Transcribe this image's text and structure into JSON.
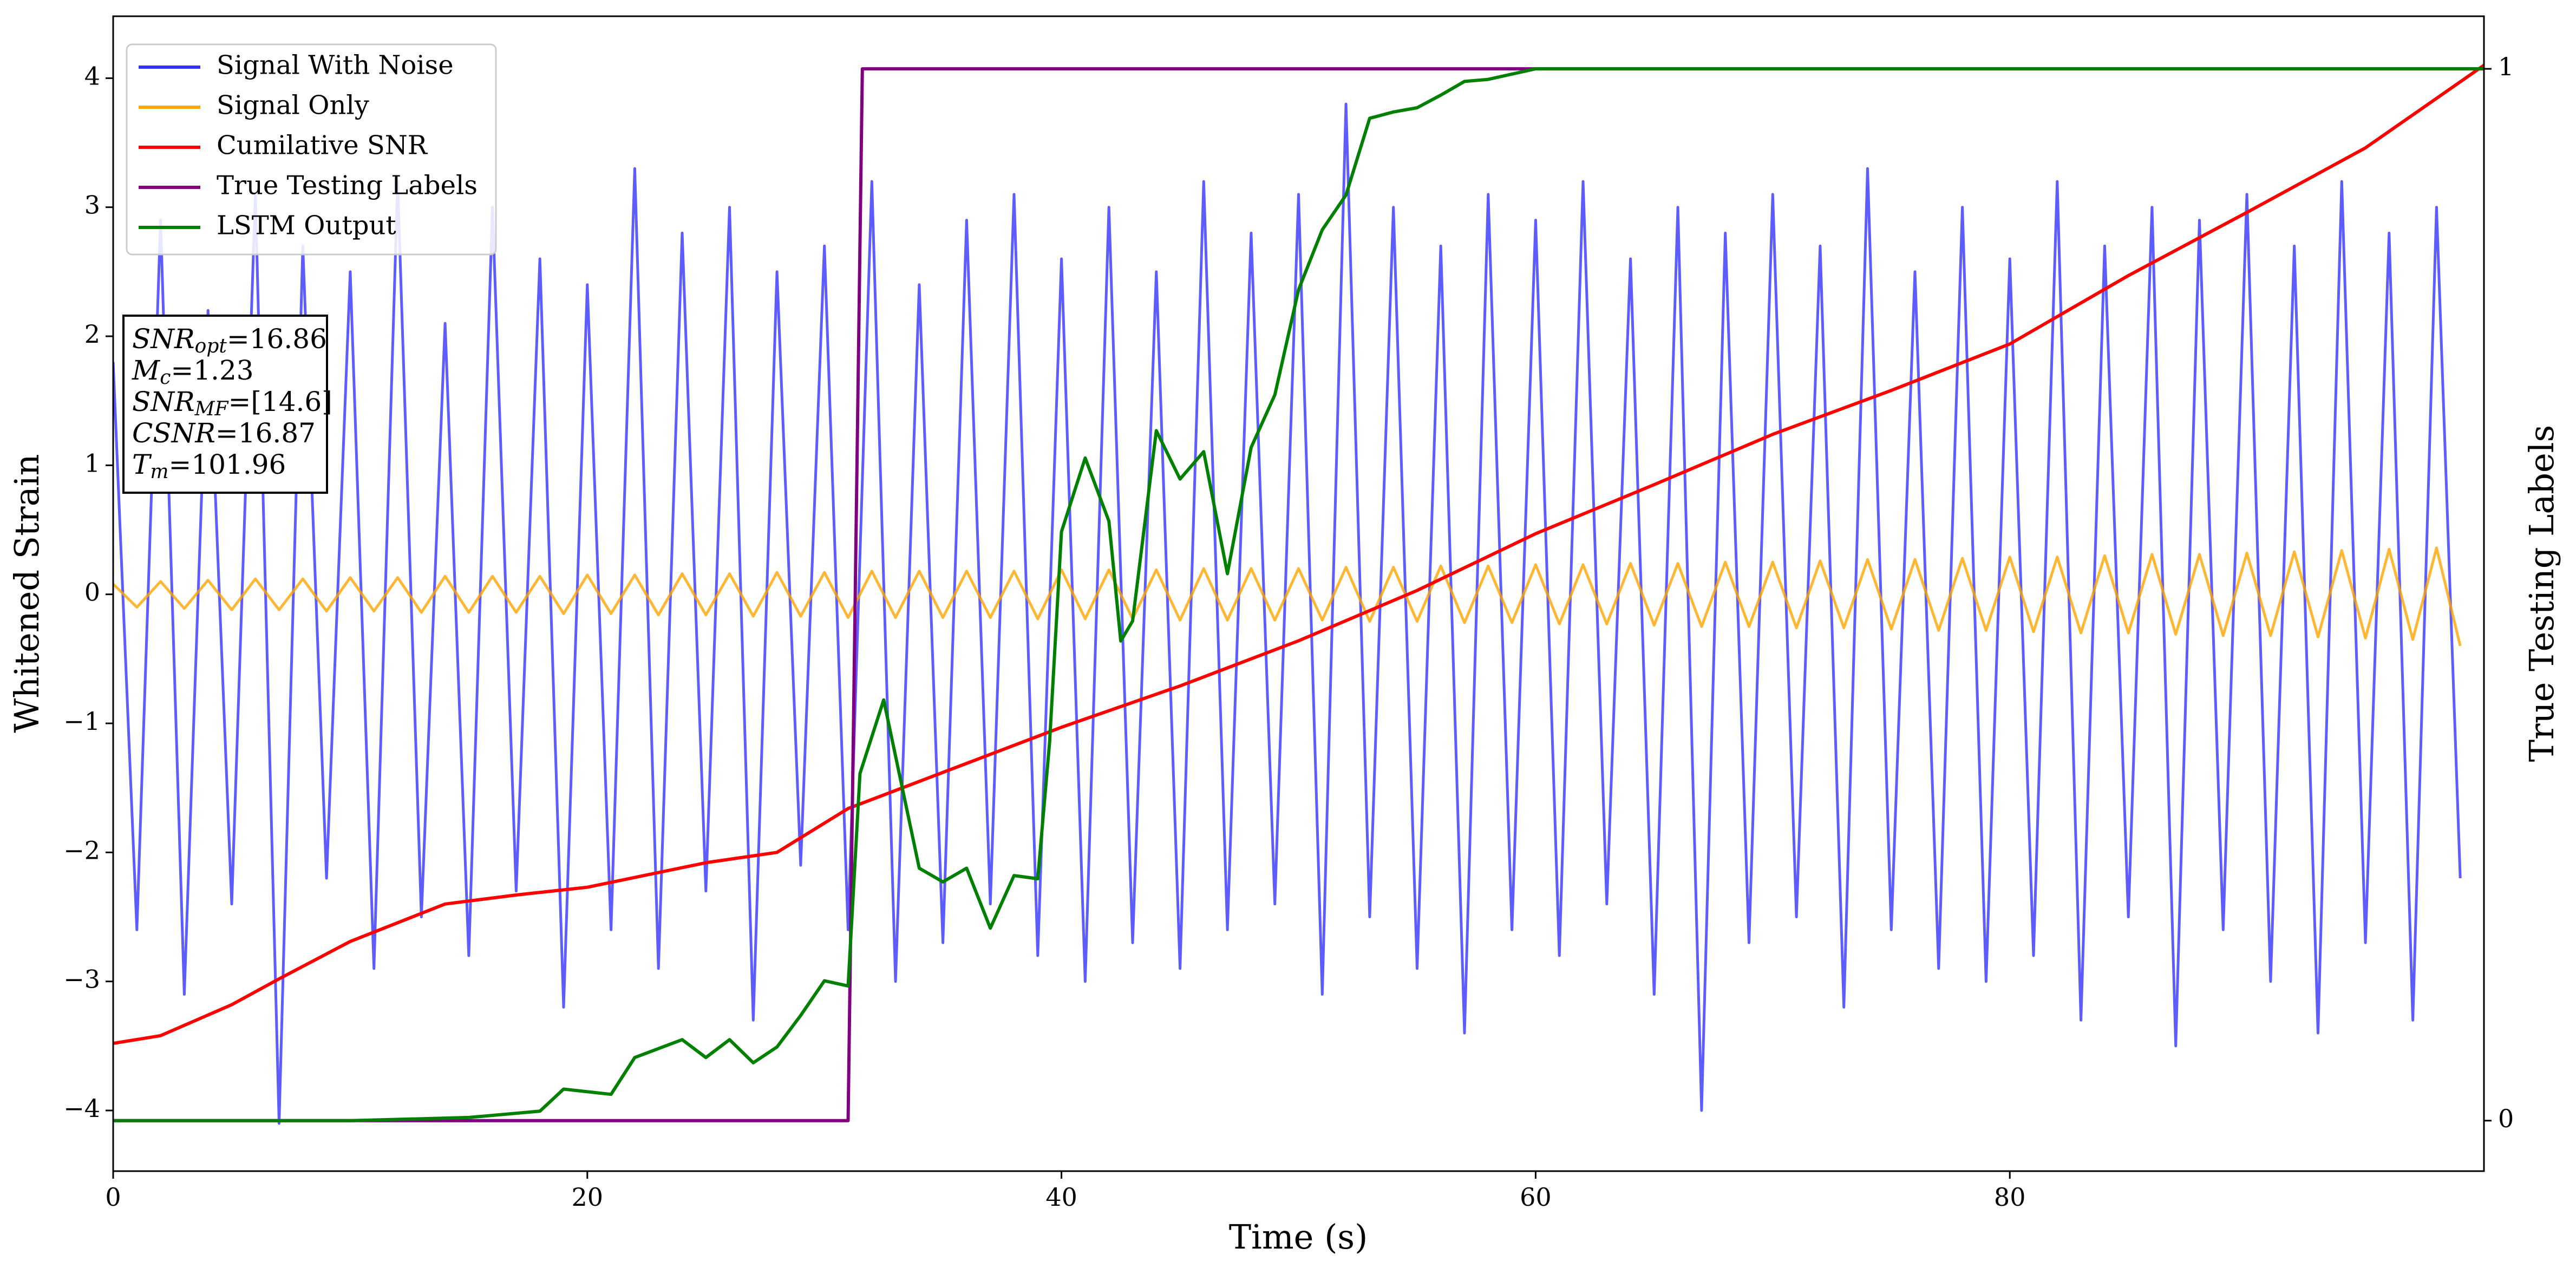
{
  "chart_data": {
    "type": "line",
    "xlabel": "Time (s)",
    "ylabel": "Whitened Strain",
    "y2label": "True Testing Labels",
    "xlim": [
      0,
      100
    ],
    "xticks": [
      0,
      20,
      40,
      60,
      80
    ],
    "ylim": [
      -4.47,
      4.48
    ],
    "yticks": [
      {
        "value": -4,
        "label": "−4"
      },
      {
        "value": -3,
        "label": "−3"
      },
      {
        "value": -2,
        "label": "−2"
      },
      {
        "value": -1,
        "label": "−1"
      },
      0,
      1,
      2,
      3,
      4
    ],
    "y2lim": [
      -0.048,
      1.05
    ],
    "y2ticks": [
      0,
      1
    ],
    "legend": "upper left",
    "annotation": [
      {
        "name": "SNR",
        "sub": "opt",
        "rest": "=16.86"
      },
      {
        "name": "M",
        "sub": "c",
        "rest": "=1.23"
      },
      {
        "name": "SNR",
        "sub": "MF",
        "rest": "=[14.6]"
      },
      {
        "name": "CSNR",
        "sub": null,
        "rest": "=16.87"
      },
      {
        "name": "T",
        "sub": "m",
        "rest": "=101.96"
      }
    ],
    "series": [
      {
        "name": "Signal With Noise",
        "color": "#3333ff",
        "x": [
          0,
          1,
          2,
          3,
          4,
          5,
          6,
          7,
          8,
          9,
          10,
          11,
          12,
          13,
          14,
          15,
          16,
          17,
          18,
          19,
          20,
          21,
          22,
          23,
          24,
          25,
          26,
          27,
          28,
          29,
          30,
          31,
          32,
          33,
          34,
          35,
          36,
          37,
          38,
          39,
          40,
          41,
          42,
          43,
          44,
          45,
          46,
          47,
          48,
          49,
          50,
          51,
          52,
          53,
          54,
          55,
          56,
          57,
          58,
          59,
          60,
          61,
          62,
          63,
          64,
          65,
          66,
          67,
          68,
          69,
          70,
          71,
          72,
          73,
          74,
          75,
          76,
          77,
          78,
          79,
          80,
          81,
          82,
          83,
          84,
          85,
          86,
          87,
          88,
          89,
          90,
          91,
          92,
          93,
          94,
          95,
          96,
          97,
          98,
          99
        ],
        "values": [
          1.8,
          -2.6,
          2.9,
          -3.1,
          2.2,
          -2.4,
          3.1,
          -4.1,
          2.7,
          -2.2,
          2.5,
          -2.9,
          3.2,
          -2.5,
          2.1,
          -2.8,
          3.0,
          -2.3,
          2.6,
          -3.2,
          2.4,
          -2.6,
          3.3,
          -2.9,
          2.8,
          -2.3,
          3.0,
          -3.3,
          2.5,
          -2.1,
          2.7,
          -2.6,
          3.2,
          -3.0,
          2.4,
          -2.7,
          2.9,
          -2.4,
          3.1,
          -2.8,
          2.6,
          -3.0,
          3.0,
          -2.7,
          2.5,
          -2.9,
          3.2,
          -2.6,
          2.8,
          -2.4,
          3.1,
          -3.1,
          3.8,
          -2.5,
          3.0,
          -2.9,
          2.7,
          -3.4,
          3.1,
          -2.6,
          2.9,
          -2.8,
          3.2,
          -2.4,
          2.6,
          -3.1,
          3.0,
          -4.0,
          2.8,
          -2.7,
          3.1,
          -2.5,
          2.7,
          -3.2,
          3.3,
          -2.6,
          2.5,
          -2.9,
          3.0,
          -3.0,
          2.6,
          -2.8,
          3.2,
          -3.3,
          2.7,
          -2.5,
          3.0,
          -3.5,
          2.9,
          -2.6,
          3.1,
          -3.0,
          2.7,
          -3.4,
          3.2,
          -2.7,
          2.8,
          -3.3,
          3.0,
          -2.2
        ]
      },
      {
        "name": "Signal Only",
        "color": "#ffa500",
        "x": [
          0,
          1,
          2,
          3,
          4,
          5,
          6,
          7,
          8,
          9,
          10,
          11,
          12,
          13,
          14,
          15,
          16,
          17,
          18,
          19,
          20,
          21,
          22,
          23,
          24,
          25,
          26,
          27,
          28,
          29,
          30,
          31,
          32,
          33,
          34,
          35,
          36,
          37,
          38,
          39,
          40,
          41,
          42,
          43,
          44,
          45,
          46,
          47,
          48,
          49,
          50,
          51,
          52,
          53,
          54,
          55,
          56,
          57,
          58,
          59,
          60,
          61,
          62,
          63,
          64,
          65,
          66,
          67,
          68,
          69,
          70,
          71,
          72,
          73,
          74,
          75,
          76,
          77,
          78,
          79,
          80,
          81,
          82,
          83,
          84,
          85,
          86,
          87,
          88,
          89,
          90,
          91,
          92,
          93,
          94,
          95,
          96,
          97,
          98,
          99
        ],
        "values": [
          0.08,
          -0.1,
          0.1,
          -0.11,
          0.11,
          -0.12,
          0.12,
          -0.12,
          0.12,
          -0.13,
          0.13,
          -0.13,
          0.13,
          -0.14,
          0.14,
          -0.14,
          0.14,
          -0.14,
          0.14,
          -0.15,
          0.15,
          -0.15,
          0.15,
          -0.16,
          0.16,
          -0.16,
          0.16,
          -0.17,
          0.17,
          -0.17,
          0.17,
          -0.18,
          0.18,
          -0.18,
          0.18,
          -0.18,
          0.18,
          -0.18,
          0.18,
          -0.19,
          0.19,
          -0.19,
          0.19,
          -0.19,
          0.19,
          -0.2,
          0.2,
          -0.2,
          0.2,
          -0.2,
          0.2,
          -0.2,
          0.21,
          -0.21,
          0.21,
          -0.21,
          0.22,
          -0.22,
          0.22,
          -0.22,
          0.23,
          -0.23,
          0.23,
          -0.23,
          0.24,
          -0.24,
          0.24,
          -0.25,
          0.25,
          -0.25,
          0.25,
          -0.26,
          0.26,
          -0.26,
          0.27,
          -0.27,
          0.27,
          -0.28,
          0.28,
          -0.28,
          0.29,
          -0.29,
          0.29,
          -0.3,
          0.3,
          -0.3,
          0.31,
          -0.31,
          0.31,
          -0.32,
          0.32,
          -0.32,
          0.33,
          -0.33,
          0.34,
          -0.34,
          0.35,
          -0.35,
          0.36,
          -0.4
        ]
      },
      {
        "name": "Cumilative SNR",
        "color": "#ff0000",
        "x": [
          0,
          2,
          5,
          7,
          10,
          14,
          17,
          20,
          25,
          28,
          31,
          35,
          40,
          45,
          50,
          55,
          60,
          65,
          70,
          75,
          80,
          85,
          90,
          95,
          100
        ],
        "values": [
          -3.48,
          -3.42,
          -3.18,
          -2.98,
          -2.69,
          -2.4,
          -2.33,
          -2.27,
          -2.08,
          -2.0,
          -1.66,
          -1.38,
          -1.03,
          -0.71,
          -0.36,
          0.03,
          0.47,
          0.85,
          1.24,
          1.58,
          1.94,
          2.47,
          2.96,
          3.46,
          4.1
        ]
      },
      {
        "name": "True Testing Labels",
        "color": "#800080",
        "axis": "y2",
        "x": [
          0,
          31,
          31.6,
          100
        ],
        "values": [
          0,
          0,
          1,
          1
        ]
      },
      {
        "name": "LSTM Output",
        "color": "#008000",
        "axis": "y2",
        "x": [
          0,
          10,
          15,
          18,
          19,
          21,
          22,
          24,
          25,
          26,
          27,
          28,
          29,
          30,
          31,
          31.5,
          32.5,
          34,
          35,
          36,
          37,
          38,
          39,
          39.5,
          40,
          41,
          42,
          42.5,
          43,
          44,
          45,
          46,
          47,
          48,
          49,
          50,
          51,
          52,
          53,
          54,
          55,
          56,
          57,
          58,
          60,
          100
        ],
        "values": [
          0,
          0,
          0.003,
          0.009,
          0.03,
          0.025,
          0.06,
          0.077,
          0.06,
          0.077,
          0.055,
          0.07,
          0.1,
          0.133,
          0.128,
          0.33,
          0.4,
          0.24,
          0.227,
          0.24,
          0.183,
          0.233,
          0.23,
          0.36,
          0.56,
          0.63,
          0.57,
          0.456,
          0.475,
          0.656,
          0.61,
          0.636,
          0.52,
          0.64,
          0.69,
          0.79,
          0.847,
          0.88,
          0.953,
          0.959,
          0.963,
          0.975,
          0.988,
          0.99,
          1.0,
          1.0
        ]
      }
    ]
  }
}
